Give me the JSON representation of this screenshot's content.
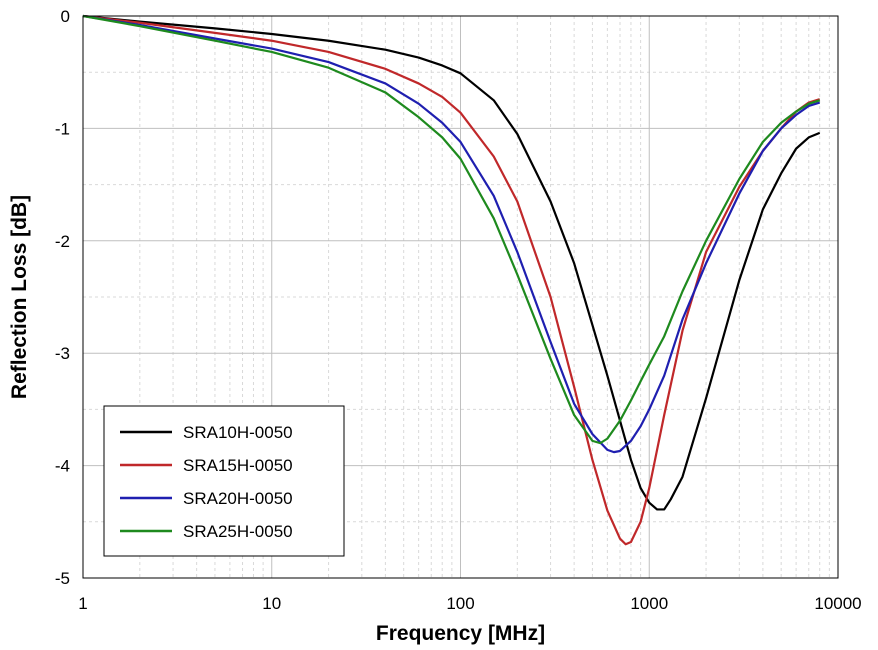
{
  "chart_data": {
    "type": "line",
    "title": "",
    "xlabel": "Frequency [MHz]",
    "ylabel": "Reflection Loss [dB]",
    "xscale": "log",
    "xlim": [
      1,
      10000
    ],
    "ylim": [
      -5,
      0
    ],
    "xticks": [
      1,
      10,
      100,
      1000,
      10000
    ],
    "xtick_labels": [
      "1",
      "10",
      "100",
      "1000",
      "10000"
    ],
    "yticks": [
      0,
      -1,
      -2,
      -3,
      -4,
      -5
    ],
    "ytick_labels": [
      "0",
      "-1",
      "-2",
      "-3",
      "-4",
      "-5"
    ],
    "grid": true,
    "legend_position": "bottom-left",
    "series": [
      {
        "name": "SRA10H-0050",
        "color": "#000000",
        "x": [
          1,
          2,
          5,
          10,
          20,
          40,
          60,
          80,
          100,
          150,
          200,
          300,
          400,
          500,
          600,
          700,
          800,
          900,
          1000,
          1100,
          1200,
          1300,
          1500,
          2000,
          3000,
          4000,
          5000,
          6000,
          7000,
          8000
        ],
        "y": [
          0,
          -0.05,
          -0.11,
          -0.16,
          -0.22,
          -0.3,
          -0.37,
          -0.44,
          -0.51,
          -0.75,
          -1.05,
          -1.65,
          -2.2,
          -2.75,
          -3.2,
          -3.6,
          -3.95,
          -4.2,
          -4.33,
          -4.39,
          -4.39,
          -4.3,
          -4.1,
          -3.4,
          -2.35,
          -1.72,
          -1.4,
          -1.18,
          -1.08,
          -1.04
        ]
      },
      {
        "name": "SRA15H-0050",
        "color": "#c0282a",
        "x": [
          1,
          2,
          5,
          10,
          20,
          40,
          60,
          80,
          100,
          150,
          200,
          300,
          400,
          500,
          600,
          700,
          750,
          800,
          900,
          1000,
          1200,
          1500,
          2000,
          3000,
          4000,
          5000,
          6000,
          7000,
          8000
        ],
        "y": [
          0,
          -0.06,
          -0.15,
          -0.22,
          -0.32,
          -0.47,
          -0.6,
          -0.72,
          -0.86,
          -1.25,
          -1.65,
          -2.5,
          -3.3,
          -3.95,
          -4.4,
          -4.65,
          -4.7,
          -4.68,
          -4.5,
          -4.2,
          -3.55,
          -2.8,
          -2.1,
          -1.52,
          -1.2,
          -1.0,
          -0.85,
          -0.77,
          -0.74
        ]
      },
      {
        "name": "SRA20H-0050",
        "color": "#1f1fb0",
        "x": [
          1,
          2,
          5,
          10,
          20,
          40,
          60,
          80,
          100,
          150,
          200,
          300,
          400,
          500,
          600,
          650,
          700,
          800,
          900,
          1000,
          1200,
          1500,
          2000,
          3000,
          4000,
          5000,
          6000,
          7000,
          8000
        ],
        "y": [
          0,
          -0.08,
          -0.2,
          -0.29,
          -0.41,
          -0.6,
          -0.78,
          -0.95,
          -1.12,
          -1.6,
          -2.1,
          -2.9,
          -3.45,
          -3.72,
          -3.86,
          -3.88,
          -3.87,
          -3.78,
          -3.65,
          -3.5,
          -3.2,
          -2.7,
          -2.2,
          -1.58,
          -1.2,
          -1.0,
          -0.88,
          -0.8,
          -0.77
        ]
      },
      {
        "name": "SRA25H-0050",
        "color": "#1e8a1e",
        "x": [
          1,
          2,
          5,
          10,
          20,
          40,
          60,
          80,
          100,
          150,
          200,
          300,
          400,
          500,
          550,
          600,
          700,
          800,
          900,
          1000,
          1200,
          1500,
          2000,
          3000,
          4000,
          5000,
          6000,
          7000,
          8000
        ],
        "y": [
          0,
          -0.09,
          -0.22,
          -0.32,
          -0.46,
          -0.68,
          -0.9,
          -1.08,
          -1.27,
          -1.8,
          -2.3,
          -3.05,
          -3.55,
          -3.78,
          -3.8,
          -3.76,
          -3.6,
          -3.42,
          -3.25,
          -3.1,
          -2.85,
          -2.45,
          -2.0,
          -1.45,
          -1.12,
          -0.95,
          -0.85,
          -0.78,
          -0.75
        ]
      }
    ]
  }
}
